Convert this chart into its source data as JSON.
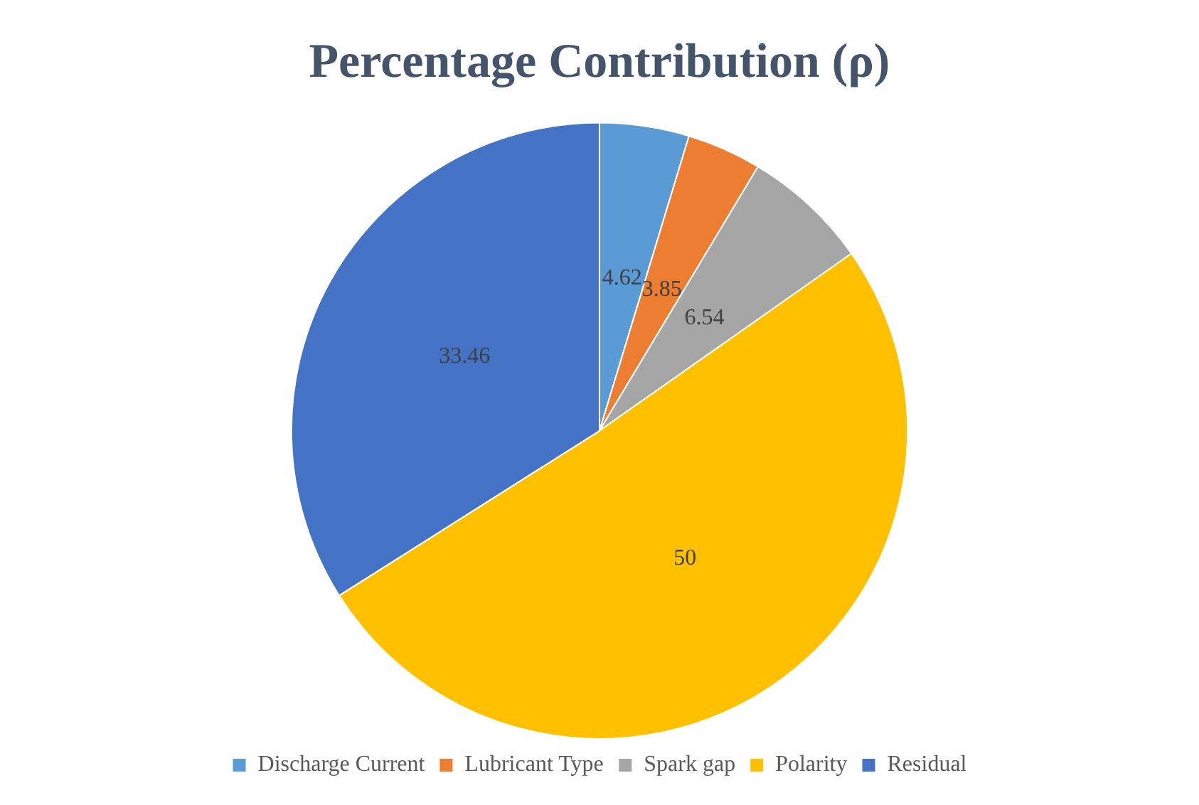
{
  "chart_data": {
    "type": "pie",
    "title": "Percentage Contribution (ρ)",
    "categories": [
      "Discharge Current",
      "Lubricant Type",
      "Spark gap",
      "Polarity",
      "Residual"
    ],
    "values": [
      4.62,
      3.85,
      6.54,
      50,
      33.46
    ],
    "colors": [
      "#5b9bd5",
      "#ed7d31",
      "#a5a5a5",
      "#ffc000",
      "#4472c4"
    ],
    "data_labels": true,
    "legend": "bottom"
  }
}
